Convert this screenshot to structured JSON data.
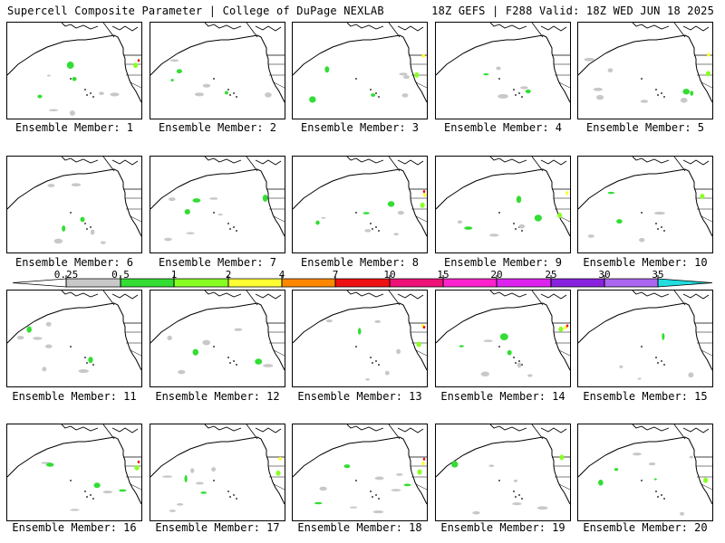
{
  "header": {
    "left": "Supercell Composite Parameter | College of DuPage NEXLAB",
    "right": "18Z GEFS | F288 Valid: 18Z WED JUN 18 2025"
  },
  "chart_data": {
    "type": "heatmap",
    "title": "Supercell Composite Parameter",
    "model": "18Z GEFS",
    "forecast_hour": "F288",
    "valid": "18Z WED JUN 18 2025",
    "panels": [
      {
        "caption": "Ensemble Member: 1"
      },
      {
        "caption": "Ensemble Member: 2"
      },
      {
        "caption": "Ensemble Member: 3"
      },
      {
        "caption": "Ensemble Member: 4"
      },
      {
        "caption": "Ensemble Member: 5"
      },
      {
        "caption": "Ensemble Member: 6"
      },
      {
        "caption": "Ensemble Member: 7"
      },
      {
        "caption": "Ensemble Member: 8"
      },
      {
        "caption": "Ensemble Member: 9"
      },
      {
        "caption": "Ensemble Member: 10"
      },
      {
        "caption": "Ensemble Member: 11"
      },
      {
        "caption": "Ensemble Member: 12"
      },
      {
        "caption": "Ensemble Member: 13"
      },
      {
        "caption": "Ensemble Member: 14"
      },
      {
        "caption": "Ensemble Member: 15"
      },
      {
        "caption": "Ensemble Member: 16"
      },
      {
        "caption": "Ensemble Member: 17"
      },
      {
        "caption": "Ensemble Member: 18"
      },
      {
        "caption": "Ensemble Member: 19"
      },
      {
        "caption": "Ensemble Member: 20"
      }
    ],
    "colorbar": {
      "labels": [
        "0.25",
        "0.5",
        "1",
        "2",
        "4",
        "7",
        "10",
        "15",
        "20",
        "25",
        "30",
        "35"
      ],
      "colors": [
        "#ffffff",
        "#c8c8c8",
        "#33dd33",
        "#88ff22",
        "#ffff33",
        "#ff8800",
        "#ee1111",
        "#ee1177",
        "#ff22cc",
        "#dd22ee",
        "#8822dd",
        "#aa66ee",
        "#22dddd"
      ]
    }
  }
}
